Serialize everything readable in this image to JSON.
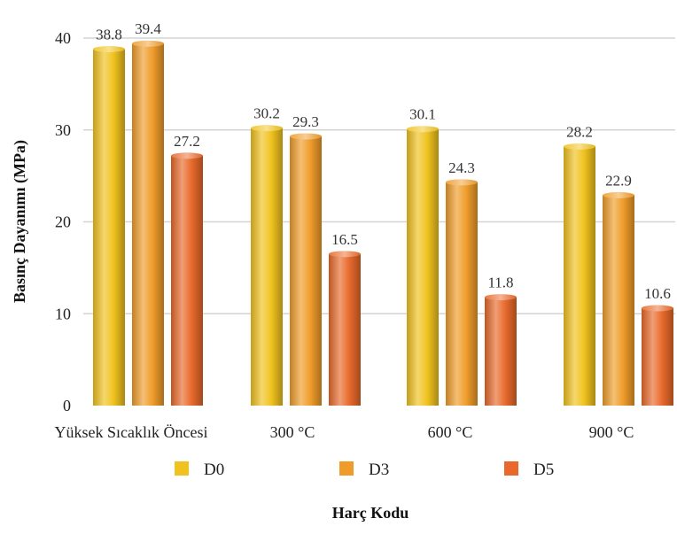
{
  "chart_data": {
    "type": "bar",
    "categories": [
      "Yüksek Sıcaklık Öncesi",
      "300 °C",
      "600 °C",
      "900 °C"
    ],
    "series": [
      {
        "name": "D0",
        "values": [
          38.8,
          30.2,
          30.1,
          28.2
        ]
      },
      {
        "name": "D3",
        "values": [
          39.4,
          29.3,
          24.3,
          22.9
        ]
      },
      {
        "name": "D5",
        "values": [
          27.2,
          16.5,
          11.8,
          10.6
        ]
      }
    ],
    "xlabel": "Harç Kodu",
    "ylabel": "Basınç Dayanımı (MPa)",
    "ylim": [
      0,
      40
    ],
    "yticks": [
      0,
      10,
      20,
      30,
      40
    ],
    "grid": true,
    "legend_position": "bottom",
    "colors": [
      "#f0c21e",
      "#ef9c2a",
      "#e8692b"
    ]
  }
}
